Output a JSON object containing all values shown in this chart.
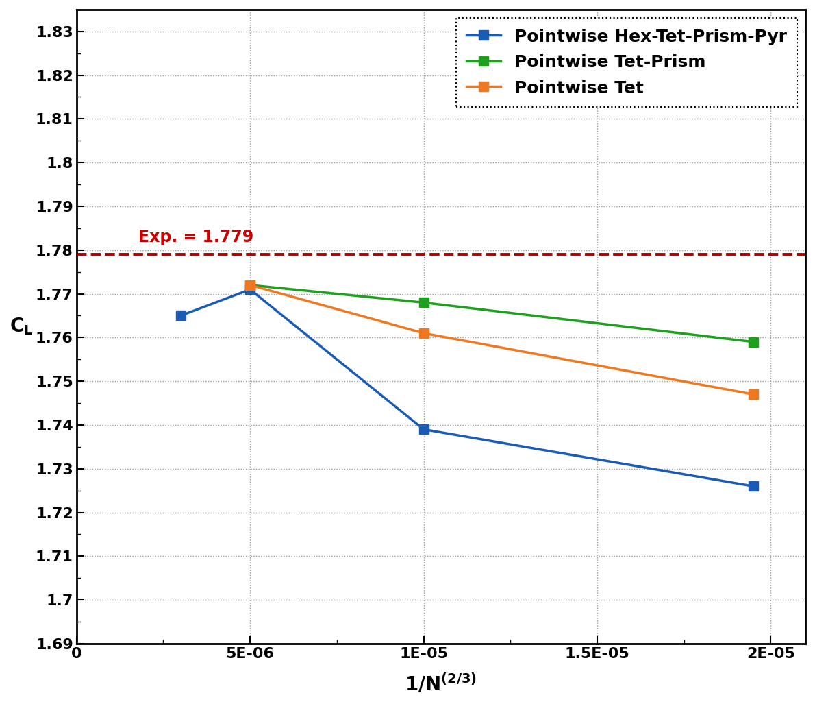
{
  "exp_value": 1.779,
  "exp_label": "Exp. = 1.779",
  "series": [
    {
      "label": "Pointwise Hex-Tet-Prism-Pyr",
      "color": "#1a5cb5",
      "x": [
        3e-06,
        5e-06,
        1e-05,
        1.95e-05
      ],
      "y": [
        1.765,
        1.771,
        1.739,
        1.726
      ],
      "marker": "s",
      "linestyle": "-"
    },
    {
      "label": "Pointwise Tet-Prism",
      "color": "#1ea01e",
      "x": [
        5e-06,
        1e-05,
        1.95e-05
      ],
      "y": [
        1.772,
        1.768,
        1.759
      ],
      "marker": "s",
      "linestyle": "-"
    },
    {
      "label": "Pointwise Tet",
      "color": "#f07820",
      "x": [
        5e-06,
        1e-05,
        1.95e-05
      ],
      "y": [
        1.772,
        1.761,
        1.747
      ],
      "marker": "s",
      "linestyle": "-"
    }
  ],
  "xlim": [
    0,
    2.1e-05
  ],
  "ylim": [
    1.69,
    1.835
  ],
  "yticks": [
    1.69,
    1.7,
    1.71,
    1.72,
    1.73,
    1.74,
    1.75,
    1.76,
    1.77,
    1.78,
    1.79,
    1.8,
    1.81,
    1.82,
    1.83
  ],
  "ytick_labels": [
    "1.69",
    "1.7",
    "1.71",
    "1.72",
    "1.73",
    "1.74",
    "1.75",
    "1.76",
    "1.77",
    "1.78",
    "1.79",
    "1.8",
    "1.81",
    "1.82",
    "1.83"
  ],
  "xticks": [
    0,
    5e-06,
    1e-05,
    1.5e-05,
    2e-05
  ],
  "xtick_labels": [
    "0",
    "5E-06",
    "1E-05",
    "1.5E-05",
    "2E-05"
  ],
  "grid_color": "#999999",
  "exp_text_color": "#cc0000",
  "exp_line_color": "#aa0000",
  "background_color": "#ffffff",
  "legend_fontsize": 18,
  "axis_label_fontsize": 20,
  "tick_fontsize": 16,
  "linewidth": 2.5,
  "markersize": 10
}
